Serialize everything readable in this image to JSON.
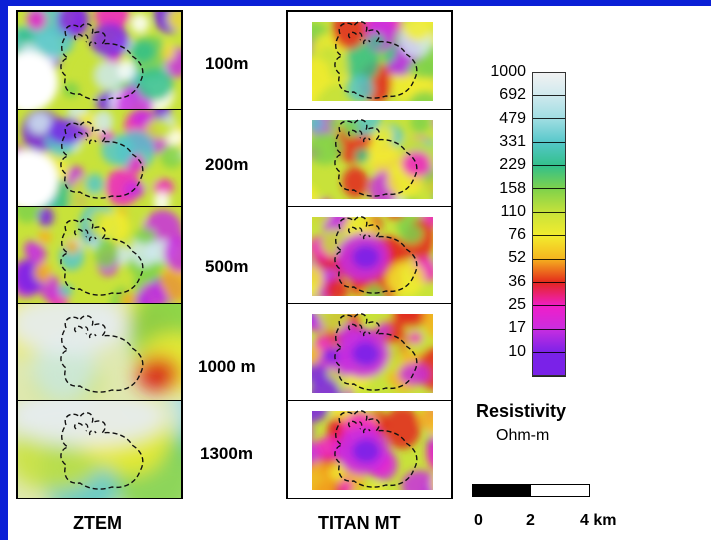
{
  "columns": {
    "left": "ZTEM",
    "right": "TITAN MT"
  },
  "depths": [
    "100m",
    "200m",
    "500m",
    "1000 m",
    "1300m"
  ],
  "legend": {
    "title": "Resistivity",
    "unit": "Ohm-m",
    "ticks": [
      "1000",
      "692",
      "479",
      "331",
      "229",
      "158",
      "110",
      "76",
      "52",
      "36",
      "25",
      "17",
      "10"
    ],
    "colors": [
      "#f2f2f2",
      "#cfe9ee",
      "#9fdde2",
      "#55c7c9",
      "#33c08a",
      "#7fd24b",
      "#c8e23a",
      "#f2ec2e",
      "#f5b21e",
      "#e3261c",
      "#f01ec8",
      "#c82ee0",
      "#7a22e8"
    ]
  },
  "scale_bar": {
    "labels": [
      "0",
      "2",
      "4 km"
    ]
  }
}
